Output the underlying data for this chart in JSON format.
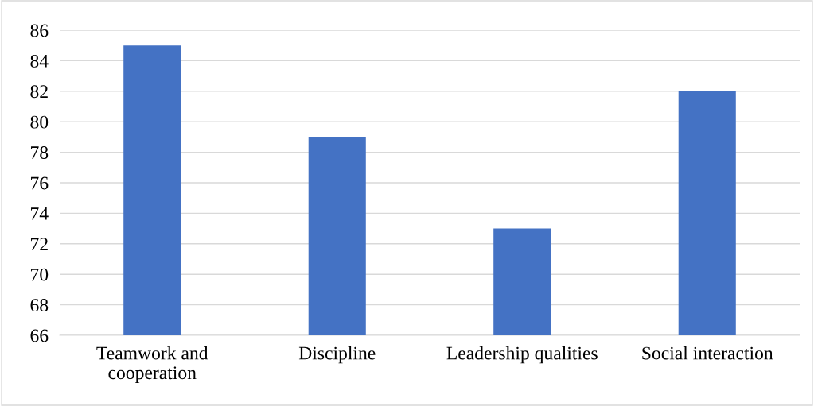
{
  "chart_data": {
    "type": "bar",
    "categories": [
      "Teamwork and\ncooperation",
      "Discipline",
      "Leadership qualities",
      "Social interaction"
    ],
    "values": [
      85,
      79,
      73,
      82
    ],
    "color": "#4472c4",
    "ylim": [
      66,
      86
    ],
    "yticks": [
      66,
      68,
      70,
      72,
      74,
      76,
      78,
      80,
      82,
      84,
      86
    ],
    "grid": "y"
  }
}
